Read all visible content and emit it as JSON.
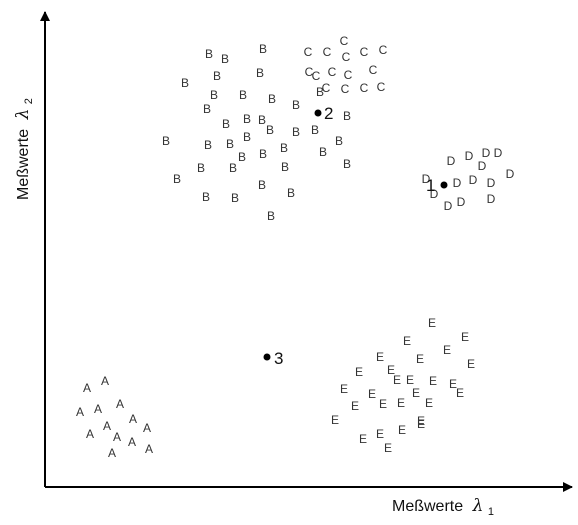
{
  "axes": {
    "x_label": "Meßwerte",
    "x_symbol": "λ",
    "x_index": "1",
    "y_label": "Meßwerte",
    "y_symbol": "λ",
    "y_index": "2"
  },
  "colors": {
    "axis": "#000000",
    "letters": "#333333",
    "points": "#000000"
  },
  "class_letters": [
    "A",
    "B",
    "C",
    "D",
    "E"
  ],
  "marked_points": [
    {
      "label": "1",
      "position_note": "left"
    },
    {
      "label": "2",
      "position_note": "right"
    },
    {
      "label": "3",
      "position_note": "right"
    }
  ]
}
